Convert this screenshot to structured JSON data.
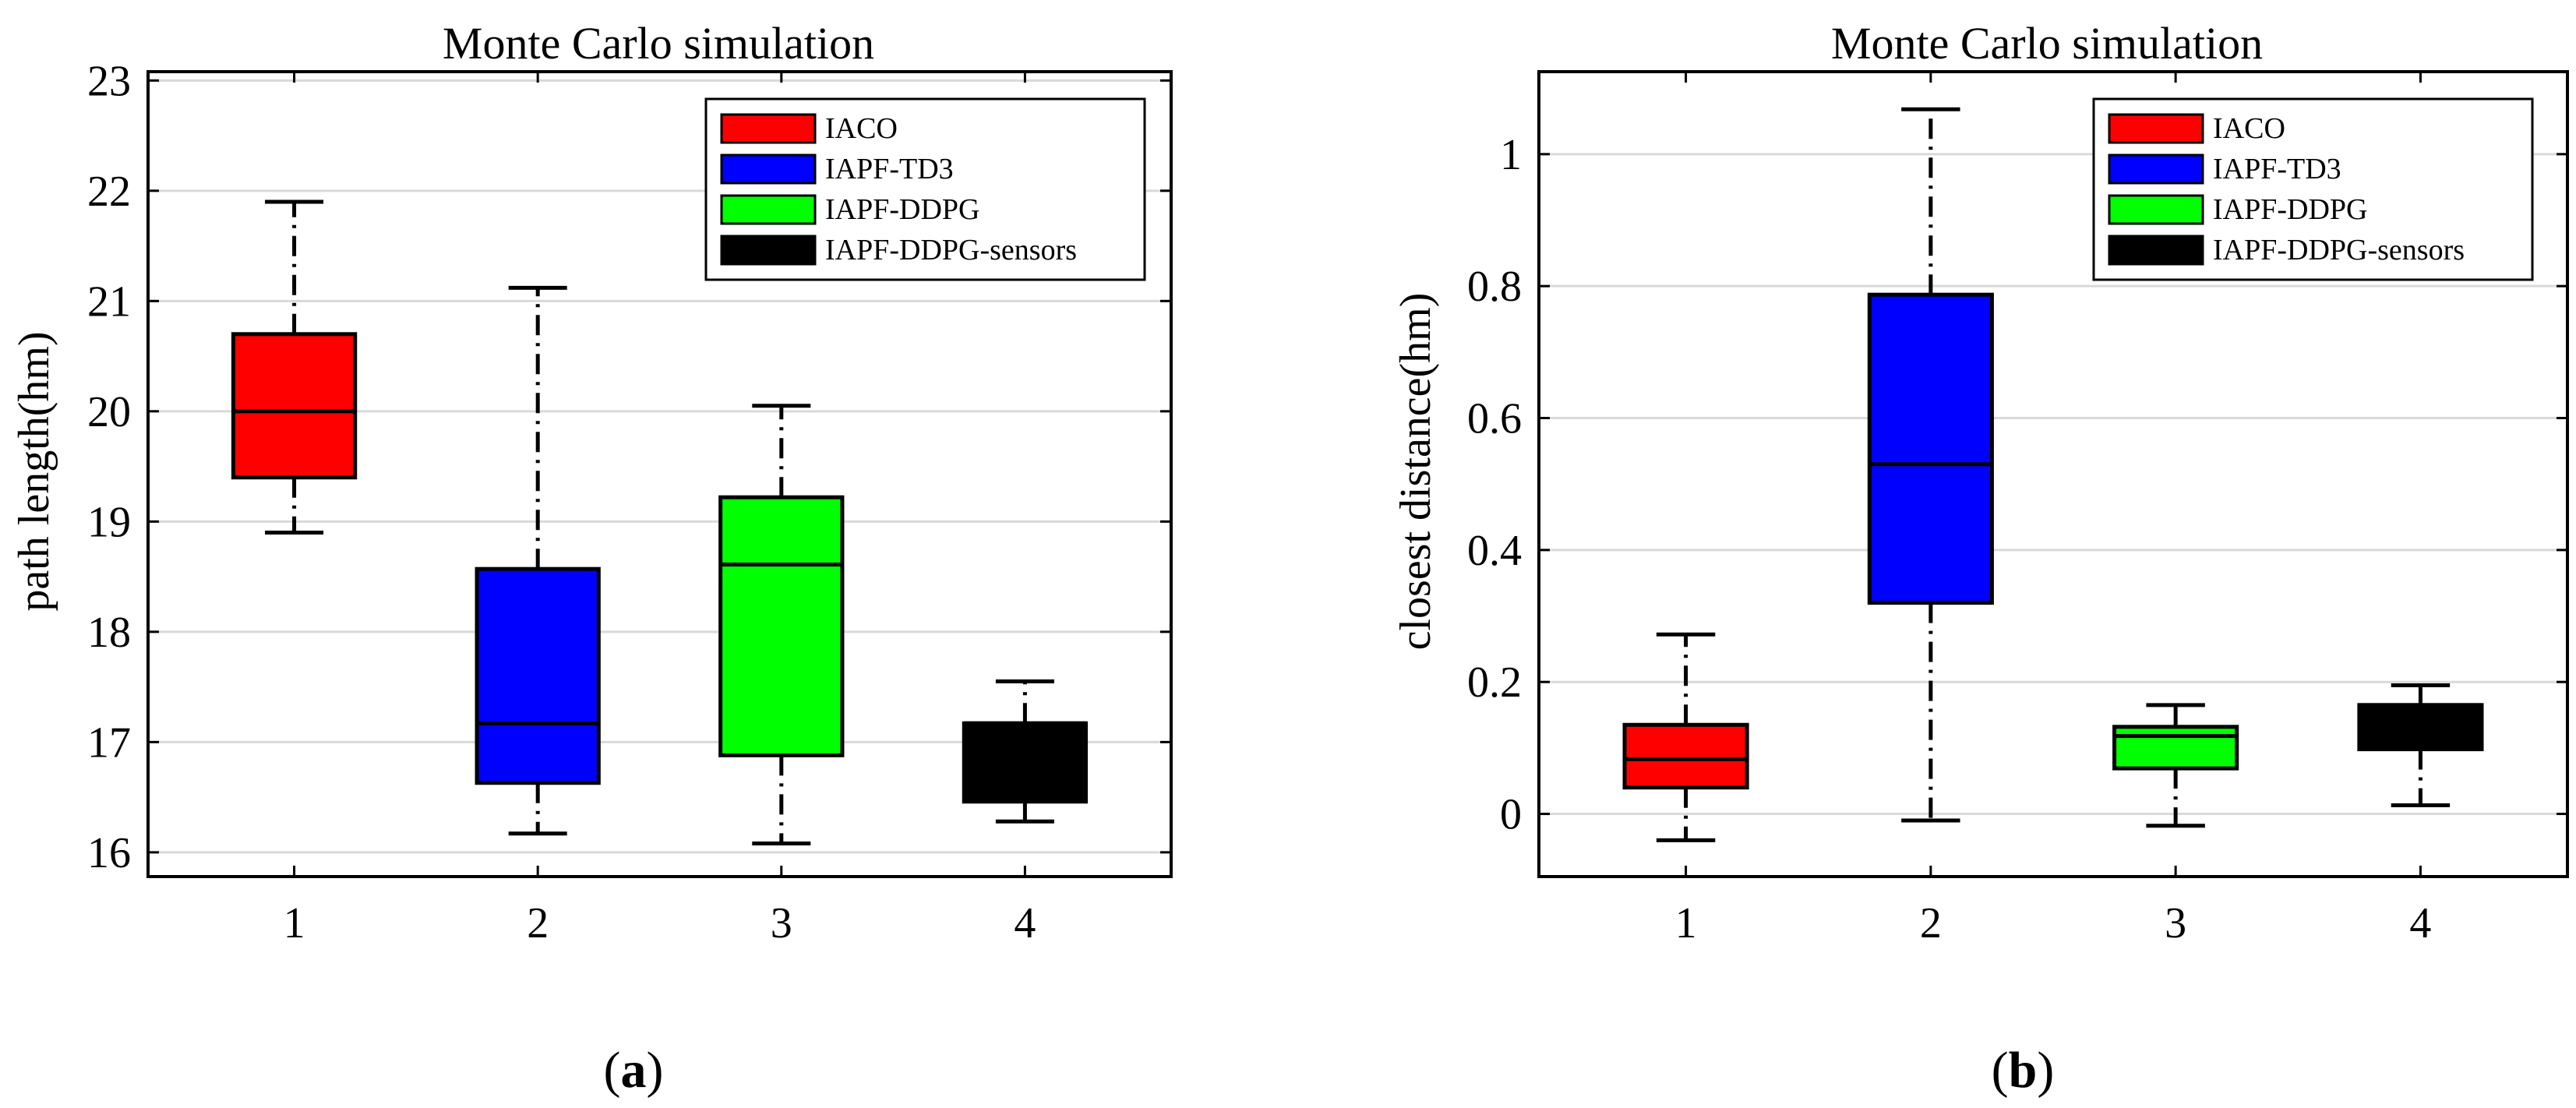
{
  "chart_data": [
    {
      "type": "boxplot",
      "panel_label": "a",
      "title": "Monte Carlo simulation",
      "xlabel": "",
      "ylabel": "path length(hm)",
      "categories": [
        "1",
        "2",
        "3",
        "4"
      ],
      "ylim": [
        15.78,
        23.08
      ],
      "yticks": [
        16,
        17,
        18,
        19,
        20,
        21,
        22,
        23
      ],
      "grid": "horizontal",
      "legend_position": "top-right",
      "series": [
        {
          "name": "IACO",
          "color": "#ff0000",
          "whisker_low": 18.9,
          "q1": 19.4,
          "median": 20.0,
          "q3": 20.7,
          "whisker_high": 21.9
        },
        {
          "name": "IAPF-TD3",
          "color": "#0000ff",
          "whisker_low": 16.17,
          "q1": 16.63,
          "median": 17.17,
          "q3": 18.57,
          "whisker_high": 21.12
        },
        {
          "name": "IAPF-DDPG",
          "color": "#00ff00",
          "whisker_low": 16.08,
          "q1": 16.88,
          "median": 18.61,
          "q3": 19.22,
          "whisker_high": 20.05
        },
        {
          "name": "IAPF-DDPG-sensors",
          "color": "#000000",
          "whisker_low": 16.28,
          "q1": 16.46,
          "median": 17.17,
          "q3": 17.17,
          "whisker_high": 17.55
        }
      ]
    },
    {
      "type": "boxplot",
      "panel_label": "b",
      "title": "Monte Carlo simulation",
      "xlabel": "",
      "ylabel": "closest distance(hm)",
      "categories": [
        "1",
        "2",
        "3",
        "4"
      ],
      "ylim": [
        -0.095,
        1.125
      ],
      "yticks": [
        0,
        0.2,
        0.4,
        0.6,
        0.8,
        1
      ],
      "ytick_labels": [
        "0",
        "0.2",
        "0.4",
        "0.6",
        "0.8",
        "1"
      ],
      "grid": "horizontal",
      "legend_position": "top-right",
      "series": [
        {
          "name": "IACO",
          "color": "#ff0000",
          "whisker_low": -0.04,
          "q1": 0.04,
          "median": 0.083,
          "q3": 0.135,
          "whisker_high": 0.272
        },
        {
          "name": "IAPF-TD3",
          "color": "#0000ff",
          "whisker_low": -0.01,
          "q1": 0.32,
          "median": 0.53,
          "q3": 0.787,
          "whisker_high": 1.068
        },
        {
          "name": "IAPF-DDPG",
          "color": "#00ff00",
          "whisker_low": -0.018,
          "q1": 0.069,
          "median": 0.118,
          "q3": 0.132,
          "whisker_high": 0.165
        },
        {
          "name": "IAPF-DDPG-sensors",
          "color": "#000000",
          "whisker_low": 0.013,
          "q1": 0.098,
          "median": 0.165,
          "q3": 0.165,
          "whisker_high": 0.195
        }
      ]
    }
  ]
}
